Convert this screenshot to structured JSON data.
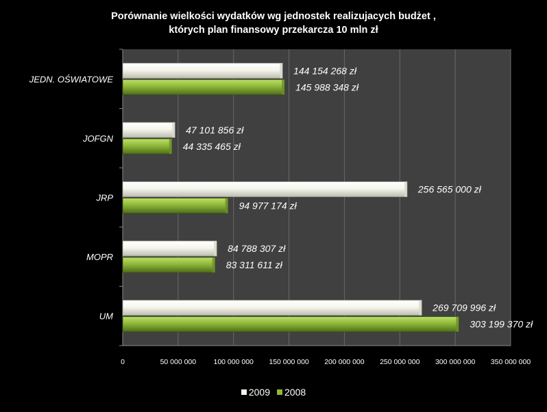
{
  "chart_data": {
    "type": "bar",
    "orientation": "horizontal",
    "title": [
      "Porównanie wielkości wydatków  wg jednostek realizujacych budżet ,",
      "których plan finansowy przekarcza 10 mln zł"
    ],
    "categories": [
      "JEDN. OŚWIATOWE",
      "JOFGN",
      "JRP",
      "MOPR",
      "UM"
    ],
    "series": [
      {
        "name": "2009",
        "color": "#f4f4ec",
        "values": [
          144154268,
          47101856,
          256565000,
          84788307,
          269709996
        ],
        "labels": [
          "144 154 268 zł",
          "47 101 856 zł",
          "256 565 000 zł",
          "84 788 307 zł",
          "269 709 996 zł"
        ]
      },
      {
        "name": "2008",
        "color": "#8fb83a",
        "values": [
          145988348,
          44335465,
          94977174,
          83311611,
          303199370
        ],
        "labels": [
          "145 988 348 zł",
          "44 335 465 zł",
          "94 977 174 zł",
          "83 311 611 zł",
          "303 199 370 zł"
        ]
      }
    ],
    "xlim": [
      0,
      350000000
    ],
    "xticks": [
      0,
      50000000,
      100000000,
      150000000,
      200000000,
      250000000,
      300000000,
      350000000
    ],
    "xtick_labels": [
      "0",
      "50 000 000",
      "100 000 000",
      "150 000 000",
      "200 000 000",
      "250 000 000",
      "300 000 000",
      "350 000 000"
    ],
    "grid": true,
    "legend_position": "bottom",
    "colors": {
      "background": "#000000",
      "plot_area": "#404040",
      "gridline": "#6a6a6a",
      "text": "#ffffff"
    }
  }
}
